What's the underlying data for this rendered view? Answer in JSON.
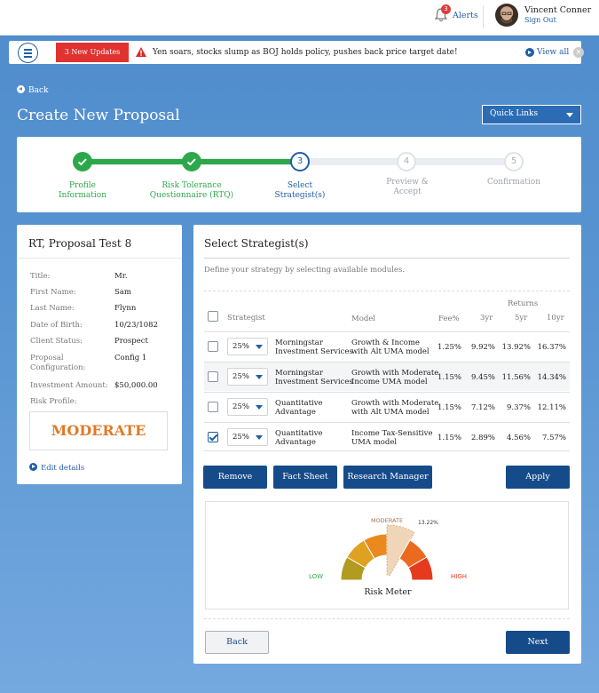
{
  "header": {
    "alerts_count": "3",
    "alerts_label": "Alerts",
    "user_name": "Vincent Conner",
    "sign_out": "Sign Out"
  },
  "newsbar": {
    "updates_label": "3 New Updates",
    "headline": "Yen soars, stocks slump as BOJ holds policy, pushes back price target date!",
    "view_all": "View all"
  },
  "nav": {
    "back": "Back",
    "page_title": "Create New Proposal",
    "quick_links": "Quick Links"
  },
  "steps": [
    {
      "num": "",
      "label": "Profile\nInformation",
      "state": "done"
    },
    {
      "num": "",
      "label": "Risk Tolerance\nQuestionnaire (RTQ)",
      "state": "done"
    },
    {
      "num": "3",
      "label": "Select\nStrategist(s)",
      "state": "current"
    },
    {
      "num": "4",
      "label": "Preview &\nAccept",
      "state": "todo"
    },
    {
      "num": "5",
      "label": "Confirmation",
      "state": "todo"
    }
  ],
  "client": {
    "name": "RT, Proposal Test 8",
    "fields": [
      {
        "label": "Title:",
        "value": "Mr."
      },
      {
        "label": "First Name:",
        "value": "Sam"
      },
      {
        "label": "Last Name:",
        "value": "Flynn"
      },
      {
        "label": "Date of Birth:",
        "value": "10/23/1082"
      },
      {
        "label": "Client Status:",
        "value": "Prospect"
      },
      {
        "label": "Proposal\nConfiguration:",
        "value": "Config 1"
      },
      {
        "label": "Investment Amount:",
        "value": "$50,000.00"
      },
      {
        "label": "Risk Profile:",
        "value": ""
      }
    ],
    "risk_profile": "MODERATE",
    "edit_details": "Edit details"
  },
  "strategist": {
    "title": "Select Strategist(s)",
    "subtitle": "Define your strategy by selecting available modules.",
    "returns_header": "Returns",
    "columns": {
      "strategist": "Strategist",
      "model": "Model",
      "fee": "Fee%",
      "y3": "3yr",
      "y5": "5yr",
      "y10": "10yr"
    },
    "rows": [
      {
        "checked": false,
        "alloc": "25%",
        "strategist": "Morningstar\nInvestment Services",
        "model": "Growth & Income\nwith Alt UMA model",
        "fee": "1.25%",
        "y3": "9.92%",
        "y5": "13.92%",
        "y10": "16.37%"
      },
      {
        "checked": false,
        "alloc": "25%",
        "strategist": "Morningstar\nInvestment Services",
        "model": "Growth with Moderate\nIncome UMA model",
        "fee": "1.15%",
        "y3": "9.45%",
        "y5": "11.56%",
        "y10": "14.34%"
      },
      {
        "checked": false,
        "alloc": "25%",
        "strategist": "Quantitative\nAdvantage",
        "model": "Growth with Moderate\nwith Alt UMA model",
        "fee": "1.15%",
        "y3": "7.12%",
        "y5": "9.37%",
        "y10": "12.11%"
      },
      {
        "checked": true,
        "alloc": "25%",
        "strategist": "Quantitative\nAdvantage",
        "model": "Income Tax-Sensitive\nUMA model",
        "fee": "1.15%",
        "y3": "2.89%",
        "y5": "4.56%",
        "y10": "7.57%"
      }
    ],
    "buttons": {
      "remove": "Remove",
      "fact_sheet": "Fact Sheet",
      "research_manager": "Research Manager",
      "apply": "Apply"
    }
  },
  "risk_meter": {
    "title": "Risk Meter",
    "low": "LOW",
    "high": "HIGH",
    "selected_band": "MODERATE",
    "value_label": "13.22%",
    "colors": [
      "#b39a21",
      "#e0a020",
      "#ea8a1e",
      "#f0d6b8",
      "#ec6a1f",
      "#e53a1d"
    ]
  },
  "footer": {
    "back": "Back",
    "next": "Next"
  },
  "colors": {
    "primary": "#164b8a",
    "green": "#2ca84a",
    "red_badge": "#e0322f",
    "orange": "#e07a26"
  }
}
